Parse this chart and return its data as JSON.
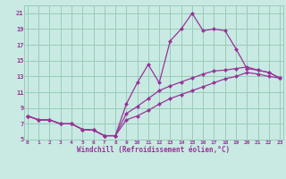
{
  "xlabel": "Windchill (Refroidissement éolien,°C)",
  "background_color": "#c8eae2",
  "grid_color": "#99ccbb",
  "line_color": "#993399",
  "xlim": [
    0,
    23
  ],
  "ylim": [
    5,
    22
  ],
  "xticks": [
    0,
    1,
    2,
    3,
    4,
    5,
    6,
    7,
    8,
    9,
    10,
    11,
    12,
    13,
    14,
    15,
    16,
    17,
    18,
    19,
    20,
    21,
    22,
    23
  ],
  "yticks": [
    5,
    7,
    9,
    11,
    13,
    15,
    17,
    19,
    21
  ],
  "curve1_x": [
    0,
    1,
    2,
    3,
    4,
    5,
    6,
    7,
    8,
    9,
    10,
    11,
    12,
    13,
    14,
    15,
    16,
    17,
    18,
    19,
    20,
    21,
    22,
    23
  ],
  "curve1_y": [
    8.0,
    7.5,
    7.5,
    7.0,
    7.0,
    6.3,
    6.2,
    5.5,
    5.5,
    9.5,
    12.2,
    14.5,
    12.2,
    17.5,
    19.0,
    21.0,
    18.8,
    19.0,
    18.8,
    16.5,
    14.0,
    13.8,
    13.5,
    12.8
  ],
  "curve2_x": [
    0,
    1,
    2,
    3,
    4,
    5,
    6,
    7,
    8,
    9,
    10,
    11,
    12,
    13,
    14,
    15,
    16,
    17,
    18,
    19,
    20,
    21,
    22,
    23
  ],
  "curve2_y": [
    8.0,
    7.5,
    7.5,
    7.0,
    7.0,
    6.3,
    6.2,
    5.5,
    5.5,
    8.3,
    9.2,
    10.2,
    11.2,
    11.8,
    12.3,
    12.8,
    13.3,
    13.7,
    13.8,
    14.0,
    14.2,
    13.8,
    13.5,
    12.8
  ],
  "curve3_x": [
    0,
    1,
    2,
    3,
    4,
    5,
    6,
    7,
    8,
    9,
    10,
    11,
    12,
    13,
    14,
    15,
    16,
    17,
    18,
    19,
    20,
    21,
    22,
    23
  ],
  "curve3_y": [
    8.0,
    7.5,
    7.5,
    7.0,
    7.0,
    6.3,
    6.2,
    5.5,
    5.5,
    7.5,
    8.0,
    8.7,
    9.5,
    10.2,
    10.7,
    11.2,
    11.7,
    12.2,
    12.7,
    13.0,
    13.5,
    13.3,
    13.0,
    12.8
  ]
}
